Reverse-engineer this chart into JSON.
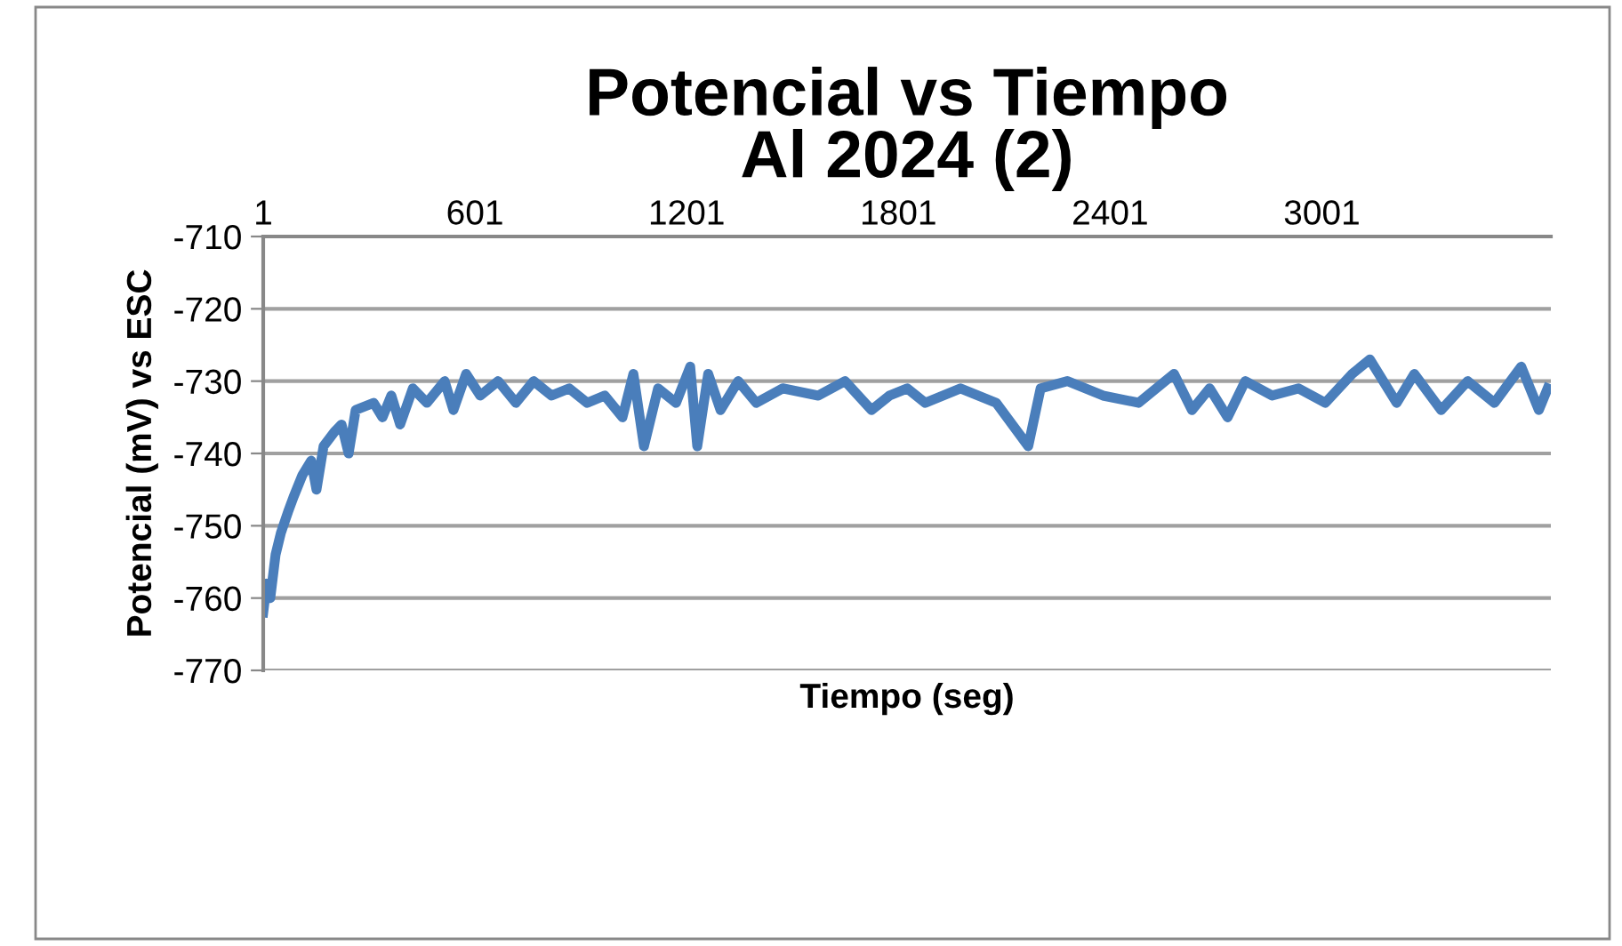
{
  "chart_data": {
    "type": "line",
    "title": "Potencial vs Tiempo\nAl 2024 (2)",
    "xlabel": "Tiempo (seg)",
    "ylabel": "Potencial (mV) vs ESC",
    "x": [
      1,
      11,
      21,
      36,
      51,
      72,
      87,
      112,
      137,
      152,
      172,
      203,
      223,
      243,
      263,
      314,
      339,
      364,
      389,
      425,
      465,
      515,
      540,
      576,
      616,
      667,
      717,
      767,
      818,
      868,
      919,
      969,
      1019,
      1050,
      1080,
      1120,
      1171,
      1211,
      1231,
      1262,
      1297,
      1347,
      1398,
      1473,
      1574,
      1650,
      1725,
      1776,
      1826,
      1877,
      1977,
      2078,
      2169,
      2204,
      2280,
      2381,
      2482,
      2582,
      2633,
      2683,
      2734,
      2784,
      2860,
      2935,
      3011,
      3087,
      3137,
      3213,
      3263,
      3339,
      3414,
      3490,
      3566,
      3616,
      3641
    ],
    "series": [
      {
        "color": "#4a7ebb",
        "values": [
          -762,
          -758,
          -760,
          -754,
          -751,
          -748,
          -746,
          -743,
          -741,
          -745,
          -739,
          -737,
          -736,
          -740,
          -734,
          -733,
          -735,
          -732,
          -736,
          -731,
          -733,
          -730,
          -734,
          -729,
          -732,
          -730,
          -733,
          -730,
          -732,
          -731,
          -733,
          -732,
          -735,
          -729,
          -739,
          -731,
          -733,
          -728,
          -739,
          -729,
          -734,
          -730,
          -733,
          -731,
          -732,
          -730,
          -734,
          -732,
          -731,
          -733,
          -731,
          -733,
          -739,
          -731,
          -730,
          -732,
          -733,
          -729,
          -734,
          -731,
          -735,
          -730,
          -732,
          -731,
          -733,
          -729,
          -727,
          -733,
          -729,
          -734,
          -730,
          -733,
          -728,
          -734,
          -731
        ]
      }
    ],
    "xlim": [
      1,
      3650
    ],
    "xticks": [
      1,
      601,
      1201,
      1801,
      2401,
      3001
    ],
    "ylim": [
      -770,
      -710
    ],
    "yticks": [
      -770,
      -760,
      -750,
      -740,
      -730,
      -720,
      -710
    ],
    "grid": "y",
    "legend": false,
    "marker": "none",
    "line_style": "solid"
  }
}
